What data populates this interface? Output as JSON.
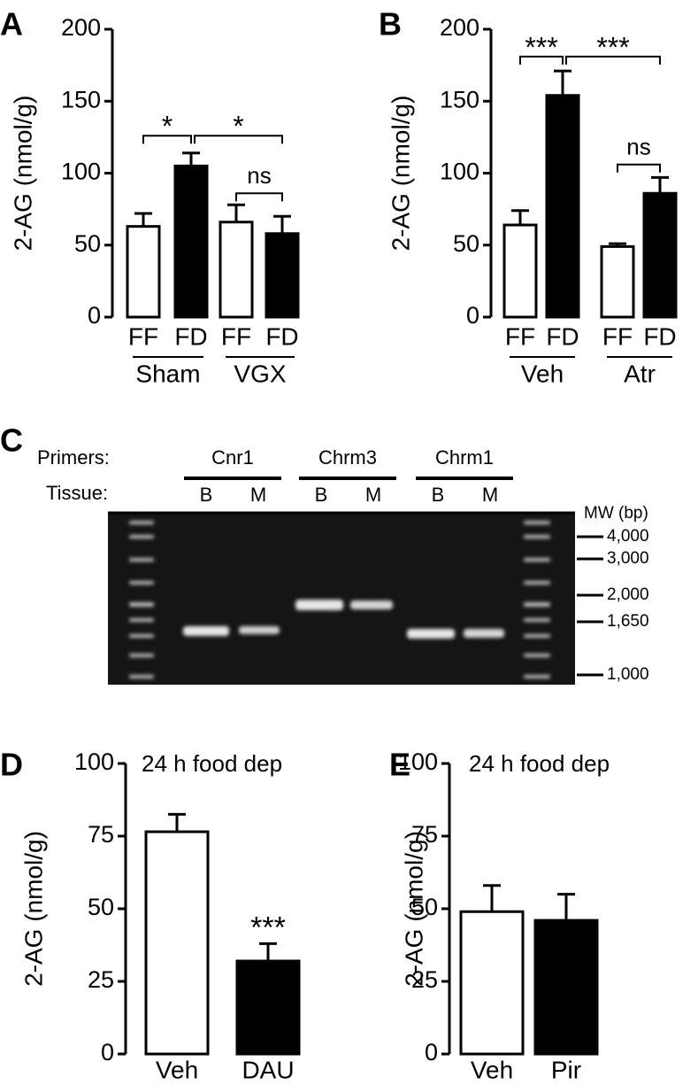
{
  "chart_data": [
    {
      "panel": "A",
      "type": "bar",
      "ylabel": "2-AG (nmol/g)",
      "ylim": [
        0,
        200
      ],
      "yticks": [
        0,
        50,
        100,
        150,
        200
      ],
      "categories": [
        "FF",
        "FD",
        "FF",
        "FD"
      ],
      "groups": [
        "Sham",
        "VGX"
      ],
      "values": [
        63,
        105,
        66,
        58
      ],
      "errors": [
        9,
        9,
        12,
        12
      ],
      "colors": [
        "#ffffff",
        "#000000",
        "#ffffff",
        "#000000"
      ],
      "annotations": [
        {
          "text": "*",
          "from": 0,
          "to": 1,
          "y": 126
        },
        {
          "text": "*",
          "from": 1,
          "to": 3,
          "y": 126
        },
        {
          "text": "ns",
          "from": 2,
          "to": 3,
          "y": 86
        }
      ]
    },
    {
      "panel": "B",
      "type": "bar",
      "ylabel": "2-AG (nmol/g)",
      "ylim": [
        0,
        200
      ],
      "yticks": [
        0,
        50,
        100,
        150,
        200
      ],
      "categories": [
        "FF",
        "FD",
        "FF",
        "FD"
      ],
      "groups": [
        "Veh",
        "Atr"
      ],
      "values": [
        64,
        154,
        49,
        86
      ],
      "errors": [
        10,
        17,
        2,
        11
      ],
      "colors": [
        "#ffffff",
        "#000000",
        "#ffffff",
        "#000000"
      ],
      "annotations": [
        {
          "text": "***",
          "from": 0,
          "to": 1,
          "y": 181
        },
        {
          "text": "***",
          "from": 1,
          "to": 3,
          "y": 181
        },
        {
          "text": "ns",
          "from": 2,
          "to": 3,
          "y": 106
        }
      ]
    },
    {
      "panel": "D",
      "type": "bar",
      "title": "24 h food dep",
      "ylabel": "2-AG (nmol/g)",
      "ylim": [
        0,
        100
      ],
      "yticks": [
        0,
        25,
        50,
        75,
        100
      ],
      "categories": [
        "Veh",
        "DAU"
      ],
      "values": [
        76.5,
        32
      ],
      "errors": [
        6,
        6
      ],
      "colors": [
        "#ffffff",
        "#000000"
      ],
      "annotations": [
        {
          "text": "***",
          "bar": 1
        }
      ]
    },
    {
      "panel": "E",
      "type": "bar",
      "title": "24 h food dep",
      "ylabel": "2-AG (nmol/g)",
      "ylim": [
        0,
        100
      ],
      "yticks": [
        0,
        25,
        50,
        75,
        100
      ],
      "categories": [
        "Veh",
        "Pir"
      ],
      "values": [
        49,
        46
      ],
      "errors": [
        9,
        9
      ],
      "colors": [
        "#ffffff",
        "#000000"
      ]
    }
  ],
  "gel": {
    "panel": "C",
    "primers_label": "Primers:",
    "tissue_label": "Tissue:",
    "primers": [
      {
        "name": "Cnr1",
        "tissues": [
          "B",
          "M"
        ]
      },
      {
        "name": "Chrm3",
        "tissues": [
          "B",
          "M"
        ]
      },
      {
        "name": "Chrm1",
        "tissues": [
          "B",
          "M"
        ]
      }
    ],
    "mw_label": "MW (bp)",
    "markers": [
      "4,000",
      "3,000",
      "2,000",
      "1,650",
      "1,000"
    ]
  }
}
